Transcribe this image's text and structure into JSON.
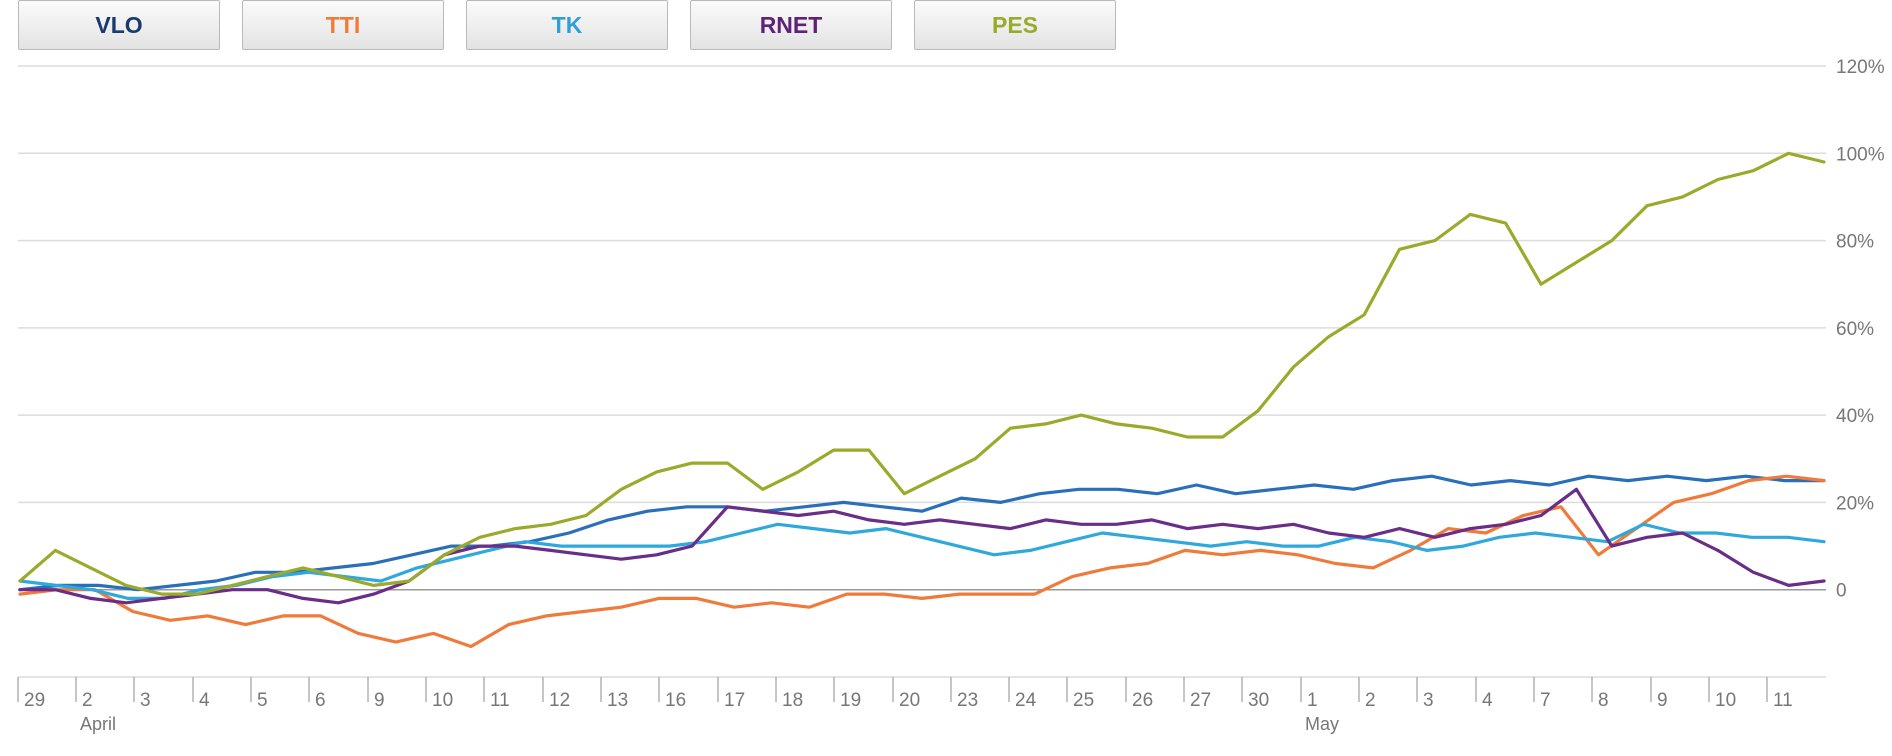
{
  "toolbar": {
    "buttons": [
      {
        "label": "VLO",
        "color": "#1a3a6e"
      },
      {
        "label": "TTI",
        "color": "#ef7a3a"
      },
      {
        "label": "TK",
        "color": "#2f9fd8"
      },
      {
        "label": "RNET",
        "color": "#5e2277"
      },
      {
        "label": "PES",
        "color": "#9aaa2a"
      }
    ]
  },
  "chart_data": {
    "type": "line",
    "y_tick_labels": [
      "120%",
      "100%",
      "80%",
      "60%",
      "40%",
      "20%",
      "0"
    ],
    "y_tick_values": [
      120,
      100,
      80,
      60,
      40,
      20,
      0
    ],
    "ylim": [
      -20,
      120
    ],
    "grid": true,
    "x_tick_labels": [
      "29",
      "2",
      "3",
      "4",
      "5",
      "6",
      "9",
      "10",
      "11",
      "12",
      "13",
      "16",
      "17",
      "18",
      "19",
      "20",
      "23",
      "24",
      "25",
      "26",
      "27",
      "30",
      "1",
      "2",
      "3",
      "4",
      "7",
      "8",
      "9",
      "10",
      "11"
    ],
    "month_labels": [
      {
        "label": "April",
        "at_tick": 1
      },
      {
        "label": "May",
        "at_tick": 22
      }
    ],
    "series": [
      {
        "name": "VLO",
        "color": "#2a6fba",
        "values": [
          0,
          1,
          1,
          0,
          1,
          2,
          4,
          4,
          5,
          6,
          8,
          10,
          10,
          11,
          13,
          16,
          18,
          19,
          19,
          18,
          19,
          20,
          19,
          18,
          21,
          20,
          22,
          23,
          23,
          22,
          24,
          22,
          23,
          24,
          23,
          25,
          26,
          24,
          25,
          24,
          26,
          25,
          26,
          25,
          26,
          25,
          25
        ]
      },
      {
        "name": "TTI",
        "color": "#ef7a3a",
        "values": [
          -1,
          0,
          0,
          -5,
          -7,
          -6,
          -8,
          -6,
          -6,
          -10,
          -12,
          -10,
          -13,
          -8,
          -6,
          -5,
          -4,
          -2,
          -2,
          -4,
          -3,
          -4,
          -1,
          -1,
          -2,
          -1,
          -1,
          -1,
          3,
          5,
          6,
          9,
          8,
          9,
          8,
          6,
          5,
          9,
          14,
          13,
          17,
          19,
          8,
          14,
          20,
          22,
          25,
          26,
          25
        ]
      },
      {
        "name": "TK",
        "color": "#2fa8dc",
        "values": [
          2,
          1,
          0,
          -2,
          -2,
          0,
          1,
          3,
          4,
          3,
          2,
          5,
          7,
          9,
          11,
          10,
          10,
          10,
          10,
          11,
          13,
          15,
          14,
          13,
          14,
          12,
          10,
          8,
          9,
          11,
          13,
          12,
          11,
          10,
          11,
          10,
          10,
          12,
          11,
          9,
          10,
          12,
          13,
          12,
          11,
          15,
          13,
          13,
          12,
          12,
          11
        ]
      },
      {
        "name": "RNET",
        "color": "#6a2d88",
        "values": [
          0,
          0,
          -2,
          -3,
          -2,
          -1,
          0,
          0,
          -2,
          -3,
          -1,
          2,
          8,
          10,
          10,
          9,
          8,
          7,
          8,
          10,
          19,
          18,
          17,
          18,
          16,
          15,
          16,
          15,
          14,
          16,
          15,
          15,
          16,
          14,
          15,
          14,
          15,
          13,
          12,
          14,
          12,
          14,
          15,
          17,
          23,
          10,
          12,
          13,
          9,
          4,
          1,
          2
        ]
      },
      {
        "name": "PES",
        "color": "#9aaa2a",
        "values": [
          2,
          9,
          5,
          1,
          -1,
          -1,
          1,
          3,
          5,
          3,
          1,
          2,
          8,
          12,
          14,
          15,
          17,
          23,
          27,
          29,
          29,
          23,
          27,
          32,
          32,
          22,
          26,
          30,
          37,
          38,
          40,
          38,
          37,
          35,
          35,
          41,
          51,
          58,
          63,
          78,
          80,
          86,
          84,
          70,
          75,
          80,
          88,
          90,
          94,
          96,
          100,
          98
        ]
      }
    ]
  }
}
